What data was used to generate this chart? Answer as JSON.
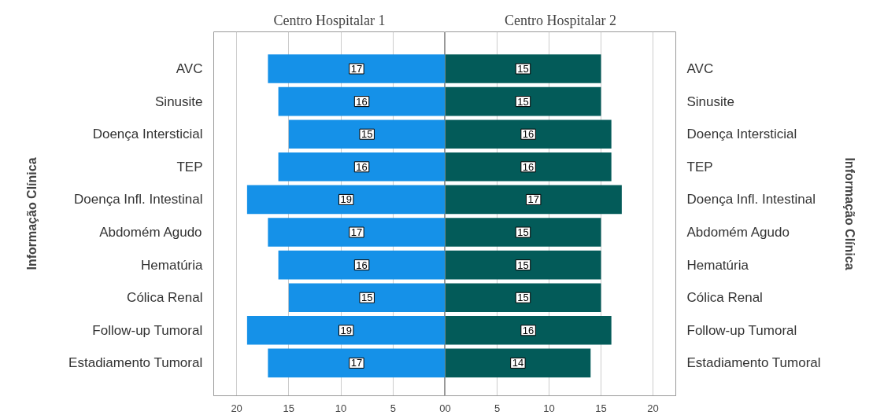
{
  "chart_data": [
    {
      "type": "bar",
      "orientation": "horizontal",
      "title": "Centro Hospitalar 1",
      "ylabel": "Informação Clínica",
      "categories": [
        "AVC",
        "Sinusite",
        "Doença Intersticial",
        "TEP",
        "Doença Infl. Intestinal",
        "Abdomém Agudo",
        "Hematúria",
        "Cólica Renal",
        "Follow-up Tumoral",
        "Estadiamento Tumoral"
      ],
      "values": [
        17,
        16,
        15,
        16,
        19,
        17,
        16,
        15,
        19,
        17
      ],
      "color": "#1591e8",
      "xlim": [
        22.2,
        0
      ],
      "xticks": [
        20,
        15,
        10,
        5,
        0
      ],
      "grid": "x",
      "data_labels": true
    },
    {
      "type": "bar",
      "orientation": "horizontal",
      "title": "Centro Hospitalar 2",
      "ylabel": "Informação Clínica",
      "categories": [
        "AVC",
        "Sinusite",
        "Doença Intersticial",
        "TEP",
        "Doença Infl. Intestinal",
        "Abdomém Agudo",
        "Hematúria",
        "Cólica Renal",
        "Follow-up Tumoral",
        "Estadiamento Tumoral"
      ],
      "values": [
        15,
        15,
        16,
        16,
        17,
        15,
        15,
        15,
        16,
        14
      ],
      "color": "#035b59",
      "xlim": [
        0,
        22.2
      ],
      "xticks": [
        0,
        5,
        10,
        15,
        20
      ],
      "grid": "x",
      "data_labels": true
    }
  ]
}
